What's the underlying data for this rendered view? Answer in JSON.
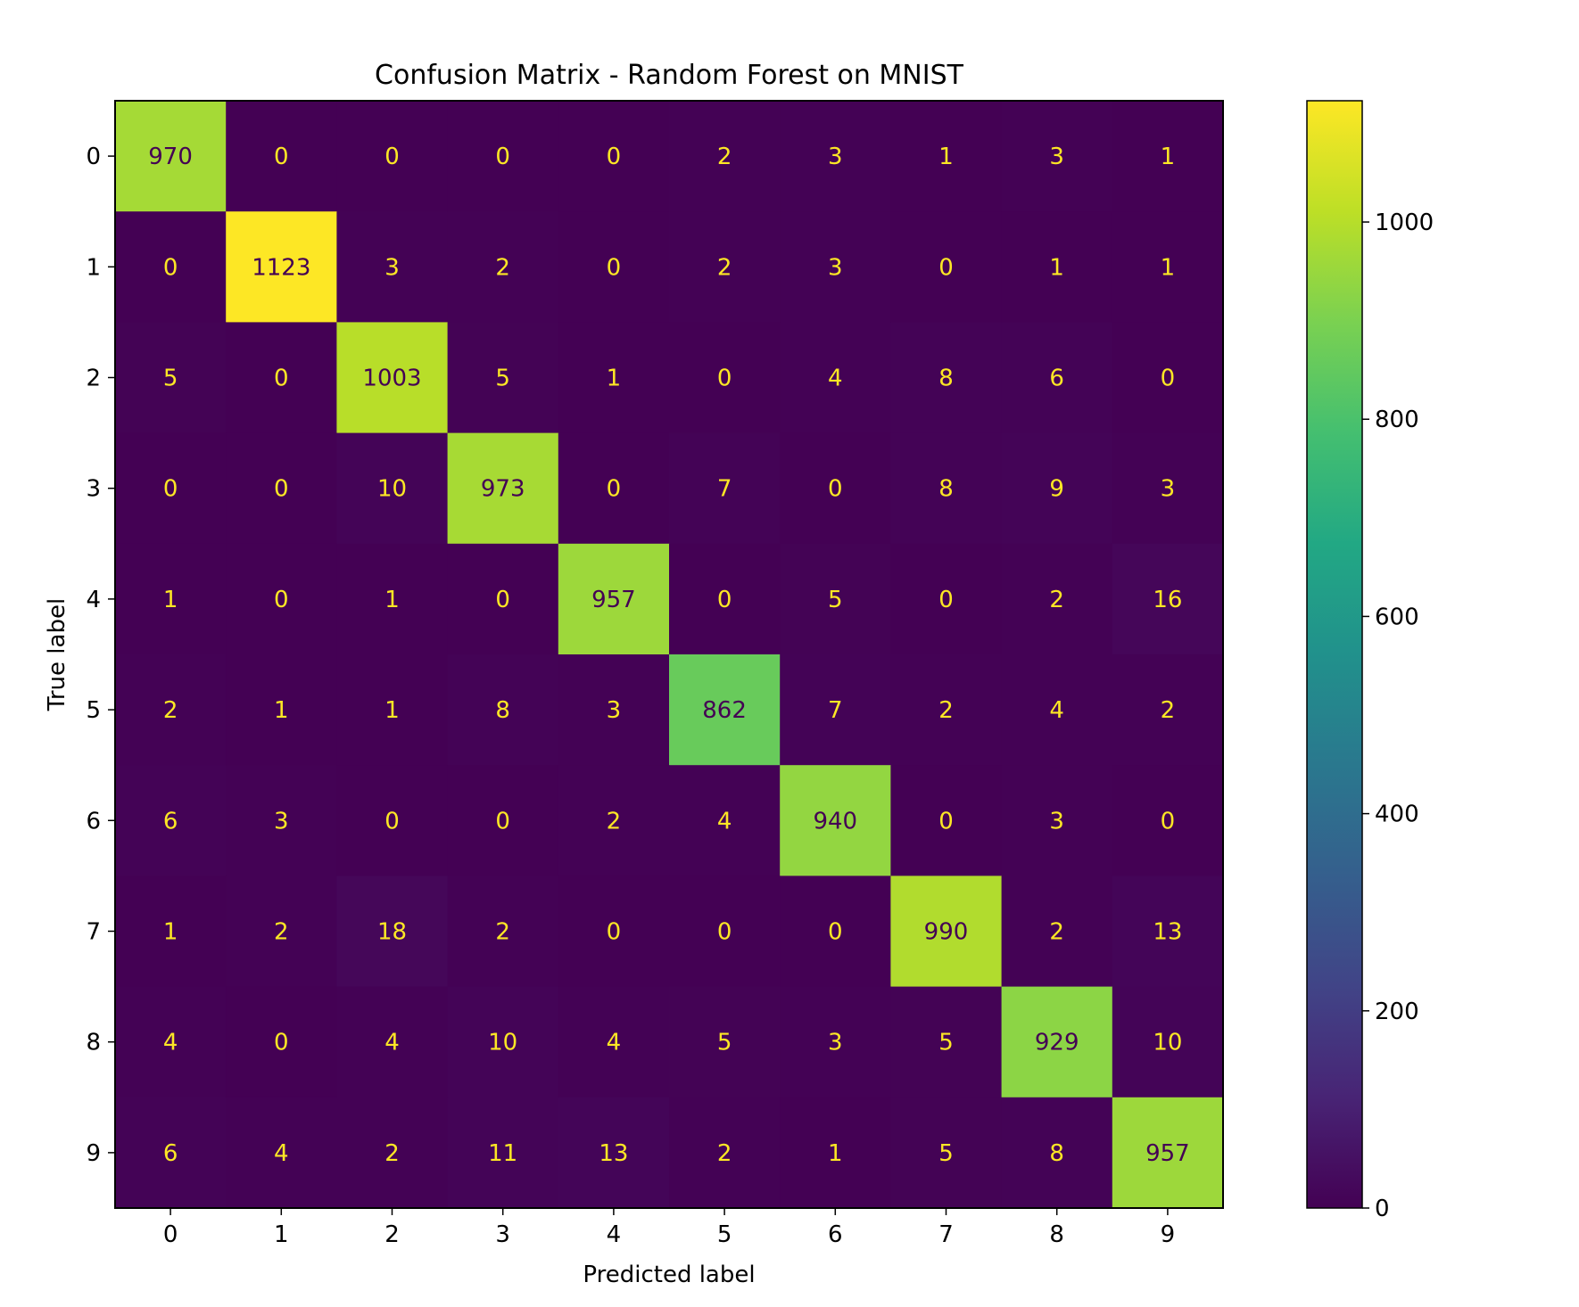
{
  "chart_data": {
    "type": "heatmap",
    "title": "Confusion Matrix - Random Forest on MNIST",
    "xlabel": "Predicted label",
    "ylabel": "True label",
    "x_categories": [
      "0",
      "1",
      "2",
      "3",
      "4",
      "5",
      "6",
      "7",
      "8",
      "9"
    ],
    "y_categories": [
      "0",
      "1",
      "2",
      "3",
      "4",
      "5",
      "6",
      "7",
      "8",
      "9"
    ],
    "values": [
      [
        970,
        0,
        0,
        0,
        0,
        2,
        3,
        1,
        3,
        1
      ],
      [
        0,
        1123,
        3,
        2,
        0,
        2,
        3,
        0,
        1,
        1
      ],
      [
        5,
        0,
        1003,
        5,
        1,
        0,
        4,
        8,
        6,
        0
      ],
      [
        0,
        0,
        10,
        973,
        0,
        7,
        0,
        8,
        9,
        3
      ],
      [
        1,
        0,
        1,
        0,
        957,
        0,
        5,
        0,
        2,
        16
      ],
      [
        2,
        1,
        1,
        8,
        3,
        862,
        7,
        2,
        4,
        2
      ],
      [
        6,
        3,
        0,
        0,
        2,
        4,
        940,
        0,
        3,
        0
      ],
      [
        1,
        2,
        18,
        2,
        0,
        0,
        0,
        990,
        2,
        13
      ],
      [
        4,
        0,
        4,
        10,
        4,
        5,
        3,
        5,
        929,
        10
      ],
      [
        6,
        4,
        2,
        11,
        13,
        2,
        1,
        5,
        8,
        957
      ]
    ],
    "colormap": "viridis",
    "colorbar": {
      "min": 0,
      "max": 1123,
      "ticks": [
        0,
        200,
        400,
        600,
        800,
        1000
      ]
    },
    "text_colors": {
      "on_dark": "#fde725",
      "on_light": "#440154"
    }
  }
}
